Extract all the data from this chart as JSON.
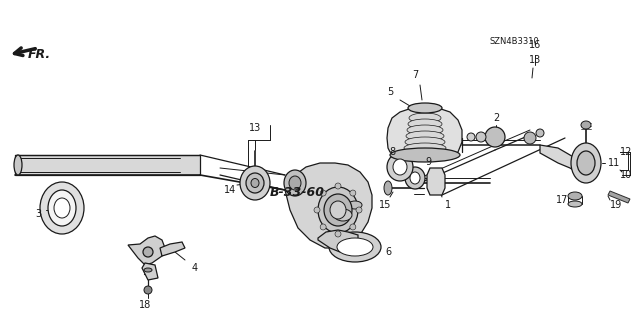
{
  "bg": "#ffffff",
  "diagram_code": "B-33-60",
  "part_number": "SZN4B3310",
  "dir_label": "FR.",
  "line_color": "#1a1a1a",
  "fill_light": "#e8e8e8",
  "fill_mid": "#cccccc",
  "fill_dark": "#aaaaaa",
  "lw_main": 1.2,
  "lw_thin": 0.7,
  "lw_med": 0.9
}
